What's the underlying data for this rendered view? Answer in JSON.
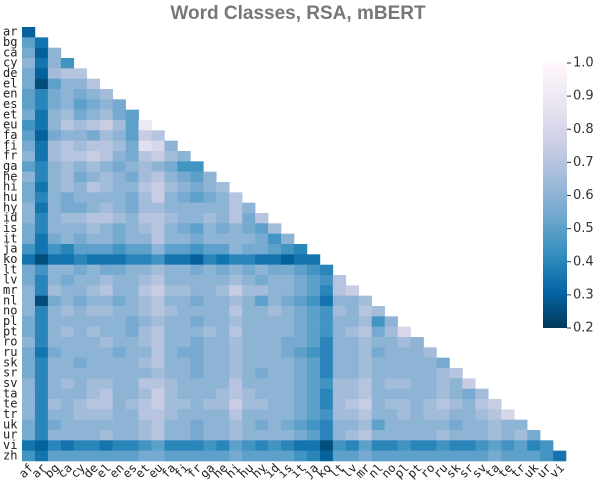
{
  "chart_data": {
    "type": "heatmap",
    "title": "Word Classes, RSA, mBERT",
    "x_categories": [
      "af",
      "ar",
      "bg",
      "ca",
      "cy",
      "de",
      "el",
      "en",
      "es",
      "et",
      "eu",
      "fa",
      "fi",
      "fr",
      "ga",
      "he",
      "hi",
      "hu",
      "hy",
      "id",
      "is",
      "it",
      "ja",
      "ko",
      "lt",
      "lv",
      "mr",
      "nl",
      "no",
      "pl",
      "pt",
      "ro",
      "ru",
      "sk",
      "sr",
      "sv",
      "ta",
      "te",
      "tr",
      "uk",
      "ur",
      "vi"
    ],
    "y_categories": [
      "ar",
      "bg",
      "ca",
      "cy",
      "de",
      "el",
      "en",
      "es",
      "et",
      "eu",
      "fa",
      "fi",
      "fr",
      "ga",
      "he",
      "hi",
      "hu",
      "hy",
      "id",
      "is",
      "it",
      "ja",
      "ko",
      "lt",
      "lv",
      "mr",
      "nl",
      "no",
      "pl",
      "pt",
      "ro",
      "ru",
      "sk",
      "sr",
      "sv",
      "ta",
      "te",
      "tr",
      "uk",
      "ur",
      "vi",
      "zh"
    ],
    "values": [
      [
        0.3
      ],
      [
        0.5,
        0.35
      ],
      [
        0.55,
        0.3,
        0.6
      ],
      [
        0.6,
        0.35,
        0.6,
        0.45
      ],
      [
        0.55,
        0.3,
        0.65,
        0.7,
        0.7
      ],
      [
        0.55,
        0.25,
        0.5,
        0.6,
        0.6,
        0.7
      ],
      [
        0.5,
        0.4,
        0.55,
        0.6,
        0.55,
        0.6,
        0.65
      ],
      [
        0.5,
        0.4,
        0.55,
        0.6,
        0.5,
        0.55,
        0.6,
        0.55
      ],
      [
        0.55,
        0.35,
        0.6,
        0.65,
        0.55,
        0.6,
        0.65,
        0.55,
        0.5
      ],
      [
        0.45,
        0.35,
        0.6,
        0.7,
        0.65,
        0.7,
        0.75,
        0.65,
        0.5,
        0.9
      ],
      [
        0.5,
        0.3,
        0.55,
        0.6,
        0.6,
        0.55,
        0.65,
        0.6,
        0.5,
        0.75,
        0.7
      ],
      [
        0.55,
        0.35,
        0.65,
        0.7,
        0.65,
        0.7,
        0.7,
        0.65,
        0.55,
        0.85,
        0.8,
        0.6
      ],
      [
        0.6,
        0.35,
        0.65,
        0.7,
        0.7,
        0.75,
        0.7,
        0.6,
        0.55,
        0.7,
        0.75,
        0.65,
        0.6
      ],
      [
        0.5,
        0.4,
        0.6,
        0.65,
        0.6,
        0.65,
        0.6,
        0.55,
        0.6,
        0.65,
        0.6,
        0.55,
        0.45,
        0.45
      ],
      [
        0.6,
        0.4,
        0.6,
        0.65,
        0.55,
        0.6,
        0.65,
        0.6,
        0.55,
        0.65,
        0.7,
        0.6,
        0.55,
        0.5,
        0.6
      ],
      [
        0.55,
        0.35,
        0.6,
        0.65,
        0.6,
        0.7,
        0.65,
        0.6,
        0.6,
        0.7,
        0.75,
        0.65,
        0.6,
        0.55,
        0.6,
        0.65
      ],
      [
        0.55,
        0.4,
        0.6,
        0.55,
        0.6,
        0.6,
        0.6,
        0.6,
        0.55,
        0.65,
        0.75,
        0.6,
        0.55,
        0.5,
        0.55,
        0.6,
        0.7
      ],
      [
        0.6,
        0.35,
        0.6,
        0.55,
        0.55,
        0.6,
        0.65,
        0.6,
        0.55,
        0.65,
        0.65,
        0.6,
        0.6,
        0.6,
        0.6,
        0.6,
        0.7,
        0.6
      ],
      [
        0.6,
        0.4,
        0.6,
        0.65,
        0.65,
        0.7,
        0.7,
        0.65,
        0.6,
        0.7,
        0.7,
        0.65,
        0.6,
        0.6,
        0.65,
        0.6,
        0.7,
        0.55,
        0.7
      ],
      [
        0.55,
        0.4,
        0.6,
        0.6,
        0.6,
        0.65,
        0.6,
        0.55,
        0.6,
        0.65,
        0.7,
        0.6,
        0.55,
        0.5,
        0.6,
        0.55,
        0.6,
        0.55,
        0.5,
        0.65
      ],
      [
        0.55,
        0.35,
        0.55,
        0.6,
        0.55,
        0.6,
        0.6,
        0.55,
        0.6,
        0.6,
        0.7,
        0.6,
        0.6,
        0.55,
        0.6,
        0.6,
        0.6,
        0.6,
        0.55,
        0.45,
        0.6
      ],
      [
        0.45,
        0.35,
        0.45,
        0.4,
        0.5,
        0.5,
        0.5,
        0.45,
        0.5,
        0.5,
        0.6,
        0.5,
        0.5,
        0.45,
        0.5,
        0.5,
        0.6,
        0.55,
        0.55,
        0.5,
        0.45,
        0.4
      ],
      [
        0.35,
        0.25,
        0.35,
        0.35,
        0.4,
        0.35,
        0.35,
        0.35,
        0.4,
        0.4,
        0.45,
        0.35,
        0.35,
        0.3,
        0.4,
        0.35,
        0.4,
        0.4,
        0.35,
        0.35,
        0.3,
        0.35,
        0.35
      ],
      [
        0.55,
        0.45,
        0.6,
        0.6,
        0.55,
        0.6,
        0.55,
        0.55,
        0.6,
        0.6,
        0.65,
        0.6,
        0.6,
        0.55,
        0.6,
        0.55,
        0.6,
        0.55,
        0.6,
        0.55,
        0.55,
        0.5,
        0.45,
        0.4
      ],
      [
        0.55,
        0.4,
        0.6,
        0.55,
        0.6,
        0.6,
        0.65,
        0.6,
        0.6,
        0.65,
        0.7,
        0.6,
        0.6,
        0.6,
        0.6,
        0.6,
        0.65,
        0.6,
        0.55,
        0.6,
        0.6,
        0.55,
        0.5,
        0.45,
        0.7
      ],
      [
        0.6,
        0.4,
        0.65,
        0.6,
        0.6,
        0.65,
        0.7,
        0.6,
        0.6,
        0.7,
        0.75,
        0.65,
        0.65,
        0.6,
        0.6,
        0.65,
        0.75,
        0.65,
        0.65,
        0.6,
        0.6,
        0.55,
        0.5,
        0.4,
        0.7,
        0.75
      ],
      [
        0.6,
        0.25,
        0.55,
        0.6,
        0.55,
        0.6,
        0.6,
        0.55,
        0.6,
        0.65,
        0.7,
        0.6,
        0.6,
        0.55,
        0.6,
        0.6,
        0.65,
        0.6,
        0.5,
        0.6,
        0.55,
        0.5,
        0.45,
        0.35,
        0.6,
        0.6,
        0.65
      ],
      [
        0.6,
        0.4,
        0.6,
        0.65,
        0.6,
        0.65,
        0.65,
        0.6,
        0.6,
        0.65,
        0.7,
        0.65,
        0.6,
        0.6,
        0.6,
        0.6,
        0.7,
        0.6,
        0.6,
        0.65,
        0.6,
        0.55,
        0.5,
        0.45,
        0.65,
        0.6,
        0.7,
        0.65
      ],
      [
        0.55,
        0.4,
        0.6,
        0.6,
        0.6,
        0.6,
        0.6,
        0.6,
        0.55,
        0.6,
        0.65,
        0.6,
        0.6,
        0.55,
        0.6,
        0.6,
        0.65,
        0.6,
        0.6,
        0.6,
        0.6,
        0.55,
        0.5,
        0.45,
        0.6,
        0.6,
        0.65,
        0.45,
        0.6
      ],
      [
        0.55,
        0.4,
        0.6,
        0.65,
        0.6,
        0.65,
        0.6,
        0.6,
        0.55,
        0.65,
        0.7,
        0.6,
        0.6,
        0.6,
        0.65,
        0.6,
        0.7,
        0.6,
        0.6,
        0.6,
        0.6,
        0.55,
        0.5,
        0.45,
        0.6,
        0.65,
        0.7,
        0.55,
        0.65,
        0.8
      ],
      [
        0.6,
        0.4,
        0.6,
        0.6,
        0.6,
        0.6,
        0.65,
        0.6,
        0.6,
        0.65,
        0.7,
        0.6,
        0.6,
        0.55,
        0.6,
        0.6,
        0.65,
        0.6,
        0.6,
        0.6,
        0.55,
        0.55,
        0.5,
        0.4,
        0.6,
        0.6,
        0.65,
        0.6,
        0.6,
        0.65,
        0.6
      ],
      [
        0.55,
        0.35,
        0.55,
        0.6,
        0.6,
        0.6,
        0.6,
        0.55,
        0.6,
        0.6,
        0.7,
        0.6,
        0.55,
        0.55,
        0.6,
        0.6,
        0.65,
        0.6,
        0.6,
        0.6,
        0.55,
        0.5,
        0.45,
        0.4,
        0.6,
        0.6,
        0.65,
        0.55,
        0.6,
        0.6,
        0.6,
        0.65
      ],
      [
        0.55,
        0.4,
        0.6,
        0.6,
        0.55,
        0.6,
        0.6,
        0.6,
        0.6,
        0.65,
        0.7,
        0.6,
        0.6,
        0.55,
        0.6,
        0.6,
        0.65,
        0.6,
        0.6,
        0.6,
        0.6,
        0.55,
        0.5,
        0.4,
        0.6,
        0.6,
        0.65,
        0.6,
        0.6,
        0.6,
        0.6,
        0.6,
        0.55
      ],
      [
        0.55,
        0.4,
        0.6,
        0.6,
        0.6,
        0.6,
        0.6,
        0.6,
        0.6,
        0.6,
        0.65,
        0.6,
        0.6,
        0.55,
        0.6,
        0.6,
        0.65,
        0.6,
        0.55,
        0.6,
        0.6,
        0.55,
        0.5,
        0.4,
        0.6,
        0.6,
        0.65,
        0.6,
        0.6,
        0.6,
        0.6,
        0.6,
        0.65,
        0.7
      ],
      [
        0.6,
        0.4,
        0.6,
        0.65,
        0.6,
        0.65,
        0.65,
        0.6,
        0.6,
        0.7,
        0.7,
        0.65,
        0.6,
        0.6,
        0.6,
        0.6,
        0.7,
        0.6,
        0.6,
        0.6,
        0.6,
        0.55,
        0.5,
        0.45,
        0.65,
        0.65,
        0.7,
        0.6,
        0.65,
        0.65,
        0.6,
        0.6,
        0.65,
        0.6,
        0.75
      ],
      [
        0.6,
        0.4,
        0.6,
        0.6,
        0.6,
        0.65,
        0.7,
        0.6,
        0.6,
        0.65,
        0.75,
        0.65,
        0.6,
        0.6,
        0.6,
        0.65,
        0.7,
        0.65,
        0.6,
        0.6,
        0.6,
        0.55,
        0.5,
        0.4,
        0.65,
        0.65,
        0.7,
        0.6,
        0.6,
        0.6,
        0.6,
        0.6,
        0.65,
        0.6,
        0.55,
        0.65
      ],
      [
        0.6,
        0.4,
        0.65,
        0.6,
        0.65,
        0.7,
        0.7,
        0.6,
        0.65,
        0.7,
        0.75,
        0.65,
        0.65,
        0.6,
        0.65,
        0.65,
        0.75,
        0.65,
        0.65,
        0.6,
        0.6,
        0.55,
        0.5,
        0.4,
        0.65,
        0.7,
        0.75,
        0.6,
        0.65,
        0.65,
        0.6,
        0.65,
        0.7,
        0.65,
        0.6,
        0.7,
        0.75
      ],
      [
        0.6,
        0.4,
        0.6,
        0.6,
        0.65,
        0.65,
        0.65,
        0.6,
        0.6,
        0.7,
        0.7,
        0.65,
        0.6,
        0.6,
        0.6,
        0.6,
        0.7,
        0.6,
        0.6,
        0.6,
        0.6,
        0.55,
        0.5,
        0.45,
        0.65,
        0.65,
        0.7,
        0.6,
        0.6,
        0.65,
        0.6,
        0.65,
        0.65,
        0.6,
        0.6,
        0.65,
        0.7,
        0.8
      ],
      [
        0.55,
        0.4,
        0.55,
        0.6,
        0.6,
        0.6,
        0.6,
        0.6,
        0.6,
        0.65,
        0.7,
        0.6,
        0.6,
        0.55,
        0.6,
        0.6,
        0.65,
        0.6,
        0.55,
        0.6,
        0.55,
        0.5,
        0.45,
        0.4,
        0.6,
        0.6,
        0.65,
        0.5,
        0.6,
        0.6,
        0.6,
        0.6,
        0.6,
        0.55,
        0.6,
        0.6,
        0.65,
        0.6,
        0.6
      ],
      [
        0.55,
        0.4,
        0.6,
        0.6,
        0.6,
        0.6,
        0.65,
        0.6,
        0.6,
        0.65,
        0.7,
        0.6,
        0.6,
        0.55,
        0.6,
        0.6,
        0.65,
        0.6,
        0.6,
        0.6,
        0.6,
        0.55,
        0.5,
        0.4,
        0.6,
        0.65,
        0.7,
        0.6,
        0.6,
        0.6,
        0.6,
        0.6,
        0.65,
        0.6,
        0.6,
        0.6,
        0.65,
        0.6,
        0.65,
        0.55
      ],
      [
        0.35,
        0.3,
        0.4,
        0.35,
        0.4,
        0.4,
        0.35,
        0.4,
        0.4,
        0.45,
        0.5,
        0.4,
        0.4,
        0.4,
        0.45,
        0.4,
        0.5,
        0.45,
        0.4,
        0.45,
        0.4,
        0.35,
        0.35,
        0.25,
        0.45,
        0.4,
        0.5,
        0.4,
        0.4,
        0.45,
        0.4,
        0.4,
        0.45,
        0.4,
        0.4,
        0.45,
        0.5,
        0.45,
        0.5,
        0.4,
        0.45
      ],
      [
        0.45,
        0.35,
        0.5,
        0.5,
        0.5,
        0.5,
        0.5,
        0.5,
        0.5,
        0.55,
        0.55,
        0.5,
        0.5,
        0.5,
        0.5,
        0.5,
        0.55,
        0.5,
        0.5,
        0.5,
        0.5,
        0.45,
        0.4,
        0.3,
        0.5,
        0.5,
        0.55,
        0.5,
        0.5,
        0.5,
        0.5,
        0.5,
        0.5,
        0.5,
        0.5,
        0.5,
        0.55,
        0.5,
        0.5,
        0.5,
        0.45,
        0.35
      ]
    ],
    "zlim": [
      0.2,
      1.0
    ],
    "zticks": [
      0.2,
      0.3,
      0.4,
      0.5,
      0.6,
      0.7,
      0.8,
      0.9,
      {
        "value": 1.0,
        "label": "1.0"
      }
    ],
    "colormap": [
      "#023858",
      "#0567a6",
      "#3690c0",
      "#74a9cf",
      "#a6bddb",
      "#d0d1e6",
      "#ece7f2",
      "#fff7fb"
    ]
  }
}
